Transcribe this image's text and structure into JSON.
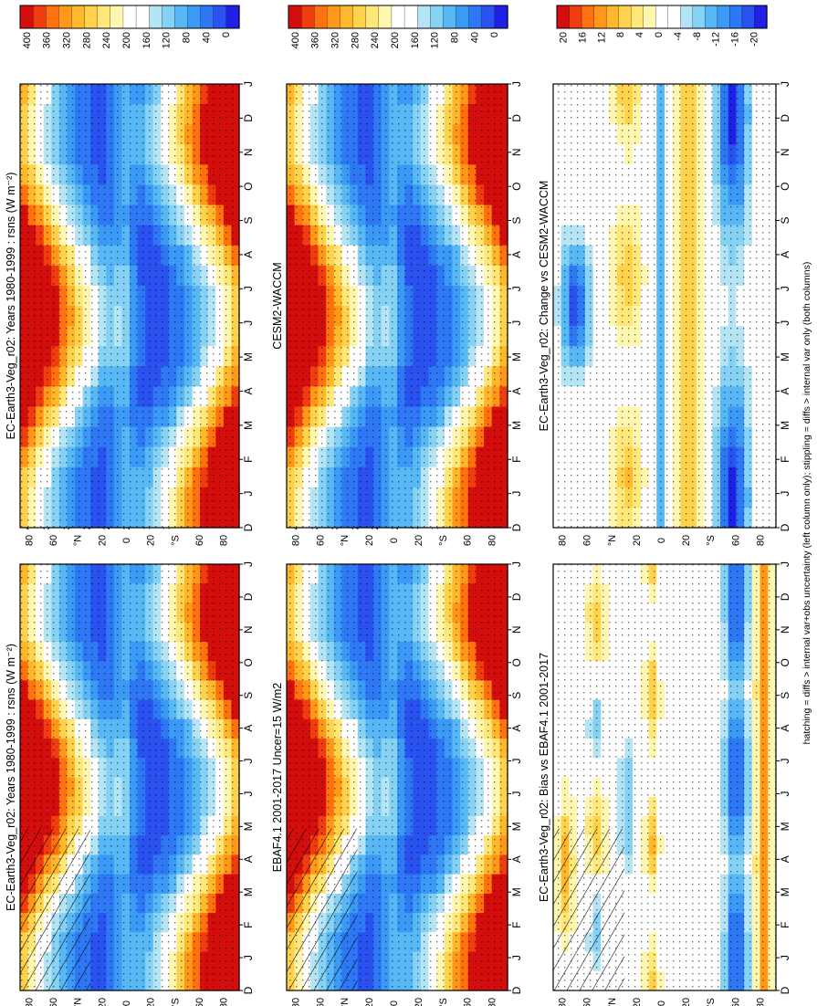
{
  "footnote": "hatching = diffs > internal var+obs uncertainty (left column only); stippling = diffs > internal var only (both columns)",
  "colors": {
    "full_scale": [
      "#1f1fe6",
      "#2a52f0",
      "#2e78f5",
      "#3a9af5",
      "#58b8f5",
      "#86d2f5",
      "#b5e4f5",
      "#ffffff",
      "#ffffff",
      "#fff7b0",
      "#ffe77a",
      "#ffd24d",
      "#ffb82b",
      "#ff9819",
      "#ff720f",
      "#ef3d10",
      "#d40d0d"
    ],
    "diff_scale": [
      "#1f1fe6",
      "#2a52f0",
      "#2e78f5",
      "#3a9af5",
      "#58b8f5",
      "#86d2f5",
      "#b5e4f5",
      "#ffffff",
      "#ffffff",
      "#fff7b0",
      "#ffe77a",
      "#ffd24d",
      "#ffb82b",
      "#ff9819",
      "#ff720f",
      "#ef3d10",
      "#d40d0d"
    ]
  },
  "chart_data": [
    {
      "type": "heatmap",
      "panel": "top-left",
      "title": "EC-Earth3-Veg_r02: Years 1980-1999 : rsns (W m⁻²)",
      "x_labels": [
        "D",
        "J",
        "F",
        "M",
        "A",
        "M",
        "J",
        "J",
        "A",
        "S",
        "O",
        "N",
        "D",
        "J"
      ],
      "y_labels": [
        "80",
        "60",
        "°N",
        "20",
        "0",
        "20",
        "°S",
        "60",
        "80"
      ],
      "colorbar_labels": [
        "400",
        "360",
        "320",
        "280",
        "240",
        "200",
        "160",
        "120",
        "80",
        "40",
        "0"
      ],
      "kind": "full",
      "hatching": true
    },
    {
      "type": "heatmap",
      "panel": "top-right",
      "title": "EC-Earth3-Veg_r02: Years 1980-1999 : rsns (W m⁻²)",
      "x_labels": [
        "D",
        "J",
        "F",
        "M",
        "A",
        "M",
        "J",
        "J",
        "A",
        "S",
        "O",
        "N",
        "D",
        "J"
      ],
      "y_labels": [
        "80",
        "60",
        "°N",
        "20",
        "0",
        "20",
        "°S",
        "60",
        "80"
      ],
      "colorbar_labels": [
        "400",
        "360",
        "320",
        "280",
        "240",
        "200",
        "160",
        "120",
        "80",
        "40",
        "0"
      ],
      "kind": "full",
      "hatching": false
    },
    {
      "type": "heatmap",
      "panel": "middle-left",
      "title": "EBAF4.1 2001-2017 Uncer=15 W/m2",
      "x_labels": [
        "D",
        "J",
        "F",
        "M",
        "A",
        "M",
        "J",
        "J",
        "A",
        "S",
        "O",
        "N",
        "D",
        "J"
      ],
      "y_labels": [
        "80",
        "60",
        "°N",
        "20",
        "0",
        "20",
        "°S",
        "60",
        "80"
      ],
      "colorbar_labels": [
        "400",
        "360",
        "320",
        "280",
        "240",
        "200",
        "160",
        "120",
        "80",
        "40",
        "0"
      ],
      "kind": "full",
      "hatching": true
    },
    {
      "type": "heatmap",
      "panel": "middle-right",
      "title": "CESM2-WACCM",
      "x_labels": [
        "D",
        "J",
        "F",
        "M",
        "A",
        "M",
        "J",
        "J",
        "A",
        "S",
        "O",
        "N",
        "D",
        "J"
      ],
      "y_labels": [
        "80",
        "60",
        "°N",
        "20",
        "0",
        "20",
        "°S",
        "60",
        "80"
      ],
      "colorbar_labels": [
        "400",
        "360",
        "320",
        "280",
        "240",
        "200",
        "160",
        "120",
        "80",
        "40",
        "0"
      ],
      "kind": "full",
      "hatching": false
    },
    {
      "type": "heatmap",
      "panel": "bottom-left",
      "title": "EC-Earth3-Veg_r02: Bias vs EBAF4.1 2001-2017",
      "x_labels": [
        "D",
        "J",
        "F",
        "M",
        "A",
        "M",
        "J",
        "J",
        "A",
        "S",
        "O",
        "N",
        "D",
        "J"
      ],
      "y_labels": [
        "80",
        "60",
        "°N",
        "20",
        "0",
        "20",
        "°S",
        "60",
        "80"
      ],
      "colorbar_labels": [
        "20",
        "16",
        "12",
        "8",
        "4",
        "0",
        "-4",
        "-8",
        "-12",
        "-16",
        "-20"
      ],
      "kind": "bias",
      "hatching": true
    },
    {
      "type": "heatmap",
      "panel": "bottom-right",
      "title": "EC-Earth3-Veg_r02: Change vs CESM2-WACCM",
      "x_labels": [
        "D",
        "J",
        "F",
        "M",
        "A",
        "M",
        "J",
        "J",
        "A",
        "S",
        "O",
        "N",
        "D",
        "J"
      ],
      "y_labels": [
        "80",
        "60",
        "°N",
        "20",
        "0",
        "20",
        "°S",
        "60",
        "80"
      ],
      "colorbar_labels": [
        "20",
        "16",
        "12",
        "8",
        "4",
        "0",
        "-4",
        "-8",
        "-12",
        "-16",
        "-20"
      ],
      "kind": "change",
      "hatching": false
    }
  ]
}
